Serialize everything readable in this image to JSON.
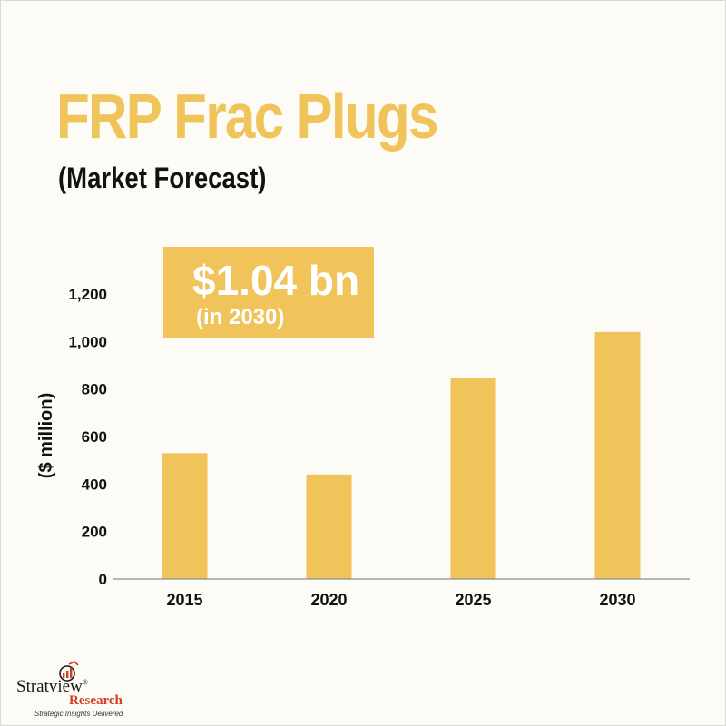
{
  "chart_data": {
    "type": "bar",
    "title": "FRP Frac Plugs",
    "subtitle": "(Market Forecast)",
    "ylabel": "($ million)",
    "xlabel": "",
    "categories": [
      "2015",
      "2020",
      "2025",
      "2030"
    ],
    "values": [
      530,
      440,
      845,
      1040
    ],
    "ylim": [
      0,
      1200
    ],
    "yticks": [
      0,
      200,
      400,
      600,
      800,
      1000,
      1200
    ],
    "ytick_labels": [
      "0",
      "200",
      "400",
      "600",
      "800",
      "1,000",
      "1,200"
    ],
    "grid": false,
    "bar_color": "#f0c45a",
    "callout": {
      "value": "$1.04 bn",
      "note": "(in 2030)"
    }
  },
  "logo": {
    "name": "Stratview",
    "registered": "®",
    "research": "Research",
    "tagline": "Strategic Insights Delivered"
  },
  "colors": {
    "accent": "#f0c45a",
    "text": "#111111",
    "brand_red": "#d04020"
  }
}
